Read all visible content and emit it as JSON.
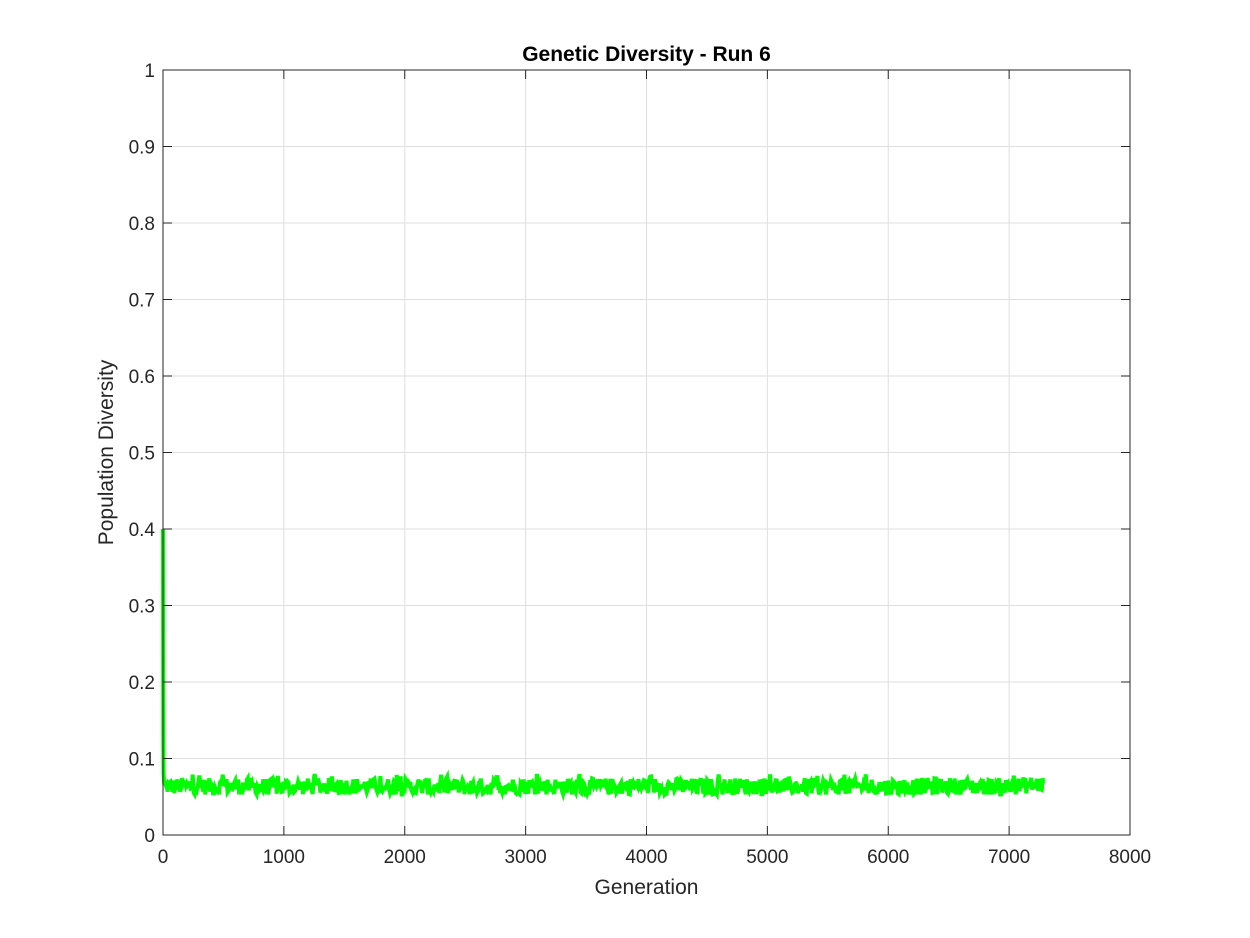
{
  "chart_data": {
    "type": "line",
    "title": "Genetic Diversity - Run 6",
    "xlabel": "Generation",
    "ylabel": "Population Diversity",
    "xlim": [
      0,
      8000
    ],
    "ylim": [
      0,
      1
    ],
    "xticks": [
      0,
      1000,
      2000,
      3000,
      4000,
      5000,
      6000,
      7000,
      8000
    ],
    "xtick_labels": [
      "0",
      "1000",
      "2000",
      "3000",
      "4000",
      "5000",
      "6000",
      "7000",
      "8000"
    ],
    "yticks": [
      0,
      0.1,
      0.2,
      0.3,
      0.4,
      0.5,
      0.6,
      0.7,
      0.8,
      0.9,
      1
    ],
    "ytick_labels": [
      "0",
      "0.1",
      "0.2",
      "0.3",
      "0.4",
      "0.5",
      "0.6",
      "0.7",
      "0.8",
      "0.9",
      "1"
    ],
    "grid": true,
    "series": [
      {
        "color": "#00ff00",
        "x": [
          0,
          1,
          2,
          3,
          5,
          10,
          20,
          40,
          80,
          150,
          300,
          600,
          1000,
          1500,
          2000,
          2500,
          3000,
          3500,
          4000,
          4500,
          5000,
          5500,
          6000,
          6500,
          7000,
          7280
        ],
        "y": [
          0.4,
          0.3,
          0.2,
          0.12,
          0.08,
          0.066,
          0.062,
          0.064,
          0.063,
          0.064,
          0.063,
          0.064,
          0.063,
          0.064,
          0.063,
          0.063,
          0.064,
          0.063,
          0.064,
          0.063,
          0.064,
          0.063,
          0.063,
          0.064,
          0.063,
          0.067
        ],
        "noise_band": [
          0.053,
          0.08
        ]
      }
    ]
  }
}
